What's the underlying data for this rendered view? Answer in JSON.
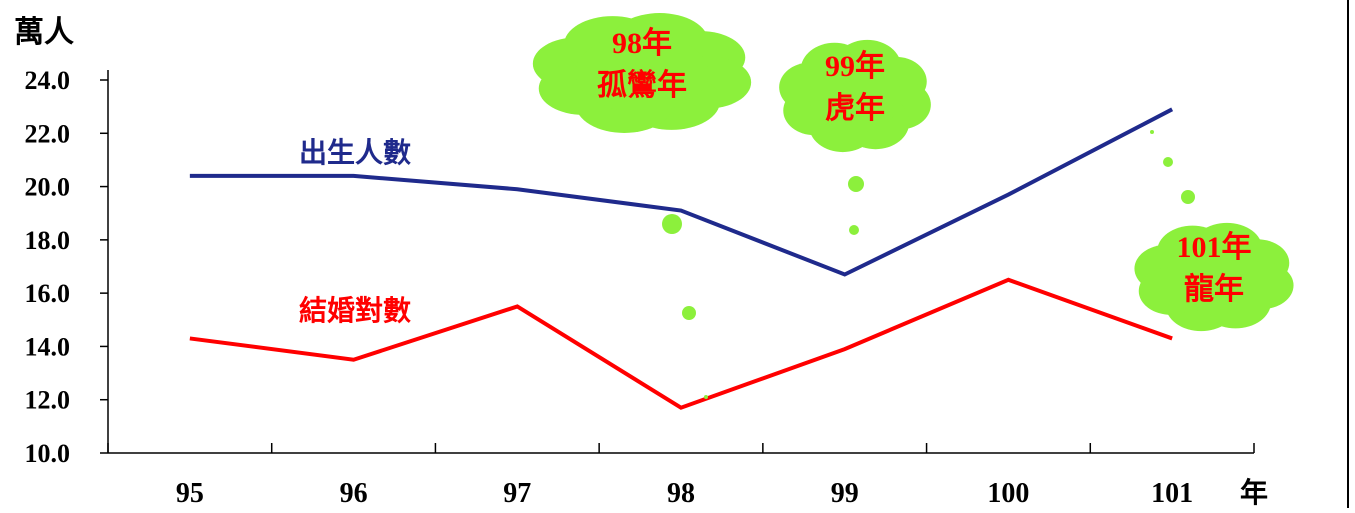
{
  "chart_data": {
    "type": "line",
    "title": "",
    "xlabel": "年",
    "ylabel": "萬人",
    "categories": [
      "95",
      "96",
      "97",
      "98",
      "99",
      "100",
      "101"
    ],
    "ylim": [
      10.0,
      24.0
    ],
    "yticks": [
      "10.0",
      "12.0",
      "14.0",
      "16.0",
      "18.0",
      "20.0",
      "22.0",
      "24.0"
    ],
    "grid": false,
    "series": [
      {
        "name": "出生人數",
        "color": "#1f2a8c",
        "values": [
          20.4,
          20.4,
          19.9,
          19.1,
          16.7,
          19.7,
          22.9
        ]
      },
      {
        "name": "結婚對數",
        "color": "#ff0000",
        "values": [
          14.3,
          13.5,
          15.5,
          11.7,
          13.9,
          16.5,
          14.3
        ]
      }
    ],
    "annotations": [
      {
        "lines": [
          "98年",
          "孤鸞年"
        ],
        "category": "98",
        "color": "#ff0000",
        "fill": "#8cf03c"
      },
      {
        "lines": [
          "99年",
          "虎年"
        ],
        "category": "99",
        "color": "#ff0000",
        "fill": "#8cf03c"
      },
      {
        "lines": [
          "101年",
          "龍年"
        ],
        "category": "101",
        "color": "#ff0000",
        "fill": "#8cf03c"
      }
    ]
  }
}
